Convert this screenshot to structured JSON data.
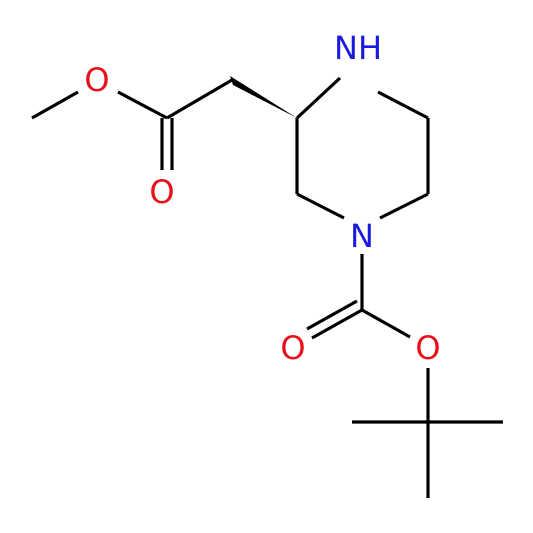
{
  "nodes": [
    {
      "label": "NH"
    },
    {
      "label": "N"
    },
    {
      "label": "O"
    },
    {
      "label": "O"
    },
    {
      "label": "O"
    },
    {
      "label": "O"
    }
  ]
}
